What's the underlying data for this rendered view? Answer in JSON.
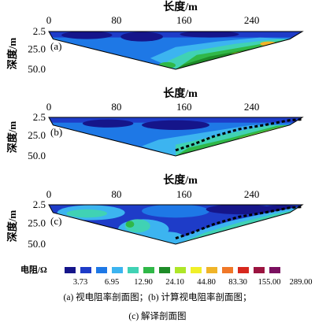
{
  "chart_data": {
    "type": "heatmap",
    "x_axis": {
      "title": "长度/m",
      "ticks": [
        0,
        80,
        160,
        240
      ],
      "range": [
        0,
        300
      ]
    },
    "y_axis": {
      "title": "深度/m",
      "ticks": [
        2.5,
        25.0,
        50.0
      ],
      "range": [
        2.5,
        50.0
      ]
    },
    "panels": [
      {
        "id": "a",
        "label": "(a)",
        "boundary_line": false,
        "profile_bottom_depth": 50.0
      },
      {
        "id": "b",
        "label": "(b)",
        "boundary_line": true,
        "profile_bottom_depth": 50.0
      },
      {
        "id": "c",
        "label": "(c)",
        "boundary_line": true,
        "profile_bottom_depth": 50.0
      }
    ],
    "interpreted_boundary": {
      "x": [
        150,
        170,
        195,
        225,
        255,
        285,
        300
      ],
      "depth": [
        43,
        36,
        26,
        17,
        12,
        6,
        5
      ]
    },
    "legend": {
      "title": "电阻/Ω",
      "values": [
        "3.73",
        "6.95",
        "12.90",
        "24.10",
        "44.80",
        "83.30",
        "155.00",
        "289.00"
      ],
      "colors": [
        "#15158a",
        "#1e3cc8",
        "#1e78e6",
        "#3cb4f0",
        "#40d2b4",
        "#30b848",
        "#1e8c28",
        "#aee628",
        "#f0f028",
        "#f0b428",
        "#f07828",
        "#d7281e",
        "#9b1440",
        "#7a1060"
      ]
    },
    "caption": {
      "line1": "(a) 视电阻率剖面图；(b) 计算视电阻率剖面图；",
      "line2": "(c) 解译剖面图"
    }
  }
}
